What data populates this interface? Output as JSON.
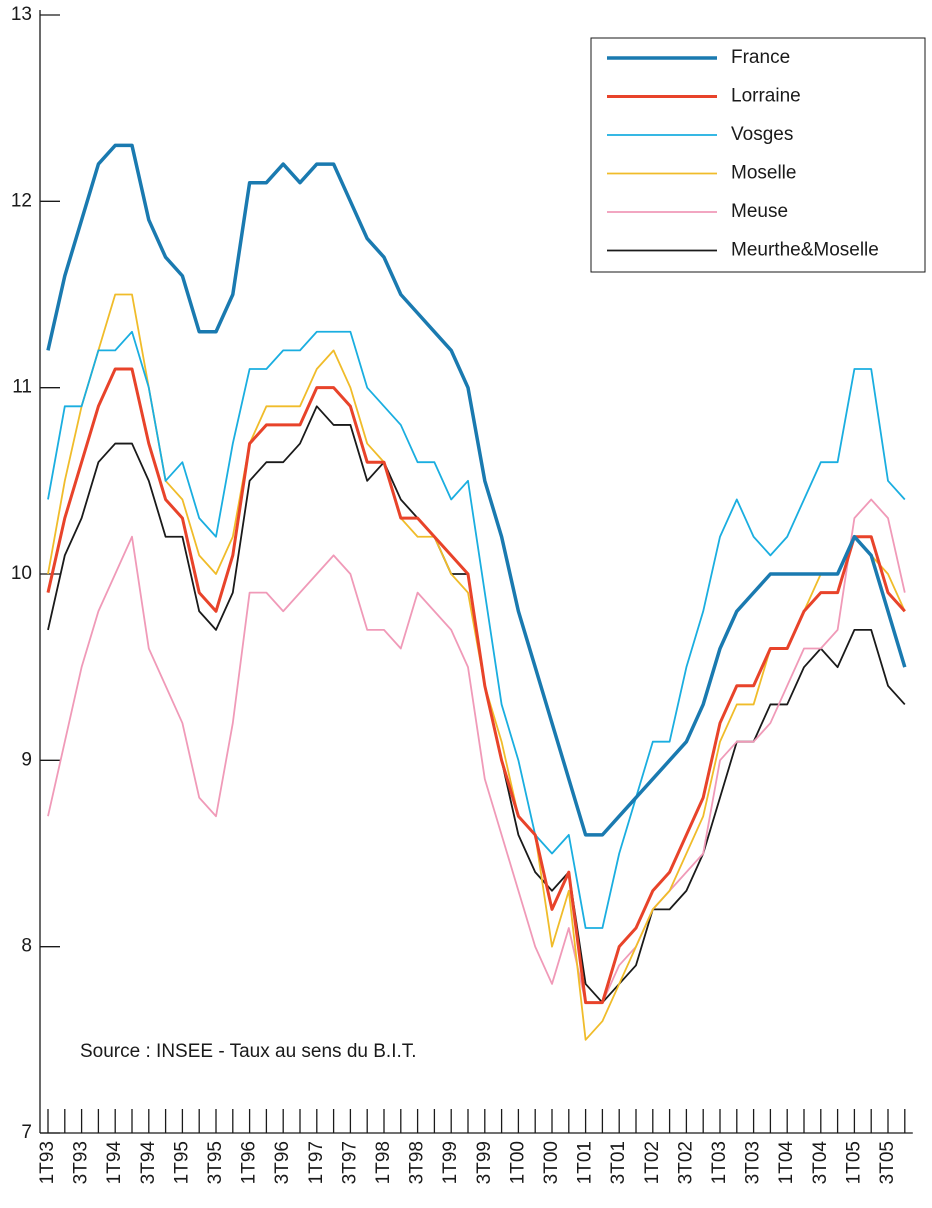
{
  "chart_data": {
    "type": "line",
    "categories": [
      "1T93",
      null,
      "3T93",
      null,
      "1T94",
      null,
      "3T94",
      null,
      "1T95",
      null,
      "3T95",
      null,
      "1T96",
      null,
      "3T96",
      null,
      "1T97",
      null,
      "3T97",
      null,
      "1T98",
      null,
      "3T98",
      null,
      "1T99",
      null,
      "3T99",
      null,
      "1T00",
      null,
      "3T00",
      null,
      "1T01",
      null,
      "3T01",
      null,
      "1T02",
      null,
      "3T02",
      null,
      "1T03",
      null,
      "3T03",
      null,
      "1T04",
      null,
      "3T04",
      null,
      "1T05",
      null,
      "3T05",
      null
    ],
    "series": [
      {
        "name": "France",
        "color": "#1a7ab0",
        "values": [
          11.2,
          11.6,
          11.9,
          12.2,
          12.3,
          12.3,
          11.9,
          11.7,
          11.6,
          11.3,
          11.3,
          11.5,
          12.1,
          12.1,
          12.2,
          12.1,
          12.2,
          12.2,
          12.0,
          11.8,
          11.7,
          11.5,
          11.4,
          11.3,
          11.2,
          11.0,
          10.5,
          10.2,
          9.8,
          9.5,
          9.2,
          8.9,
          8.6,
          8.6,
          8.7,
          8.8,
          8.9,
          9.0,
          9.1,
          9.3,
          9.6,
          9.8,
          9.9,
          10.0,
          10.0,
          10.0,
          10.0,
          10.0,
          10.2,
          10.1,
          9.8,
          9.5
        ]
      },
      {
        "name": "Lorraine",
        "color": "#e8432a",
        "values": [
          9.9,
          10.3,
          10.6,
          10.9,
          11.1,
          11.1,
          10.7,
          10.4,
          10.3,
          9.9,
          9.8,
          10.1,
          10.7,
          10.8,
          10.8,
          10.8,
          11.0,
          11.0,
          10.9,
          10.6,
          10.6,
          10.3,
          10.3,
          10.2,
          10.1,
          10.0,
          9.4,
          9.0,
          8.7,
          8.6,
          8.2,
          8.4,
          7.7,
          7.7,
          8.0,
          8.1,
          8.3,
          8.4,
          8.6,
          8.8,
          9.2,
          9.4,
          9.4,
          9.6,
          9.6,
          9.8,
          9.9,
          9.9,
          10.2,
          10.2,
          9.9,
          9.8
        ]
      },
      {
        "name": "Vosges",
        "color": "#1aaee0",
        "values": [
          10.4,
          10.9,
          10.9,
          11.2,
          11.2,
          11.3,
          11.0,
          10.5,
          10.6,
          10.3,
          10.2,
          10.7,
          11.1,
          11.1,
          11.2,
          11.2,
          11.3,
          11.3,
          11.3,
          11.0,
          10.9,
          10.8,
          10.6,
          10.6,
          10.4,
          10.5,
          9.9,
          9.3,
          9.0,
          8.6,
          8.5,
          8.6,
          8.1,
          8.1,
          8.5,
          8.8,
          9.1,
          9.1,
          9.5,
          9.8,
          10.2,
          10.4,
          10.2,
          10.1,
          10.2,
          10.4,
          10.6,
          10.6,
          11.1,
          11.1,
          10.5,
          10.4
        ]
      },
      {
        "name": "Moselle",
        "color": "#f0bc2a",
        "values": [
          10.0,
          10.5,
          10.9,
          11.2,
          11.5,
          11.5,
          11.0,
          10.5,
          10.4,
          10.1,
          10.0,
          10.2,
          10.7,
          10.9,
          10.9,
          10.9,
          11.1,
          11.2,
          11.0,
          10.7,
          10.6,
          10.3,
          10.2,
          10.2,
          10.0,
          9.9,
          9.4,
          9.1,
          8.7,
          8.6,
          8.0,
          8.3,
          7.5,
          7.6,
          7.8,
          8.0,
          8.2,
          8.3,
          8.5,
          8.7,
          9.1,
          9.3,
          9.3,
          9.6,
          9.6,
          9.8,
          10.0,
          10.0,
          10.2,
          10.1,
          10.0,
          9.8
        ]
      },
      {
        "name": "Meuse",
        "color": "#f09ab8",
        "values": [
          8.7,
          9.1,
          9.5,
          9.8,
          10.0,
          10.2,
          9.6,
          9.4,
          9.2,
          8.8,
          8.7,
          9.2,
          9.9,
          9.9,
          9.8,
          9.9,
          10.0,
          10.1,
          10.0,
          9.7,
          9.7,
          9.6,
          9.9,
          9.8,
          9.7,
          9.5,
          8.9,
          8.6,
          8.3,
          8.0,
          7.8,
          8.1,
          7.7,
          7.7,
          7.9,
          8.0,
          8.2,
          8.3,
          8.4,
          8.5,
          9.0,
          9.1,
          9.1,
          9.2,
          9.4,
          9.6,
          9.6,
          9.7,
          10.3,
          10.4,
          10.3,
          9.9
        ]
      },
      {
        "name": "Meurthe&Moselle",
        "color": "#1a1a1a",
        "values": [
          9.7,
          10.1,
          10.3,
          10.6,
          10.7,
          10.7,
          10.5,
          10.2,
          10.2,
          9.8,
          9.7,
          9.9,
          10.5,
          10.6,
          10.6,
          10.7,
          10.9,
          10.8,
          10.8,
          10.5,
          10.6,
          10.4,
          10.3,
          10.2,
          10.0,
          10.0,
          9.4,
          9.0,
          8.6,
          8.4,
          8.3,
          8.4,
          7.8,
          7.7,
          7.8,
          7.9,
          8.2,
          8.2,
          8.3,
          8.5,
          8.8,
          9.1,
          9.1,
          9.3,
          9.3,
          9.5,
          9.6,
          9.5,
          9.7,
          9.7,
          9.4,
          9.3
        ]
      }
    ],
    "ylim": [
      7,
      13
    ],
    "yticks": [
      7,
      8,
      9,
      10,
      11,
      12,
      13
    ],
    "grid": false,
    "legend": "upper right",
    "annotation": "Source : INSEE - Taux au sens du B.I.T."
  }
}
